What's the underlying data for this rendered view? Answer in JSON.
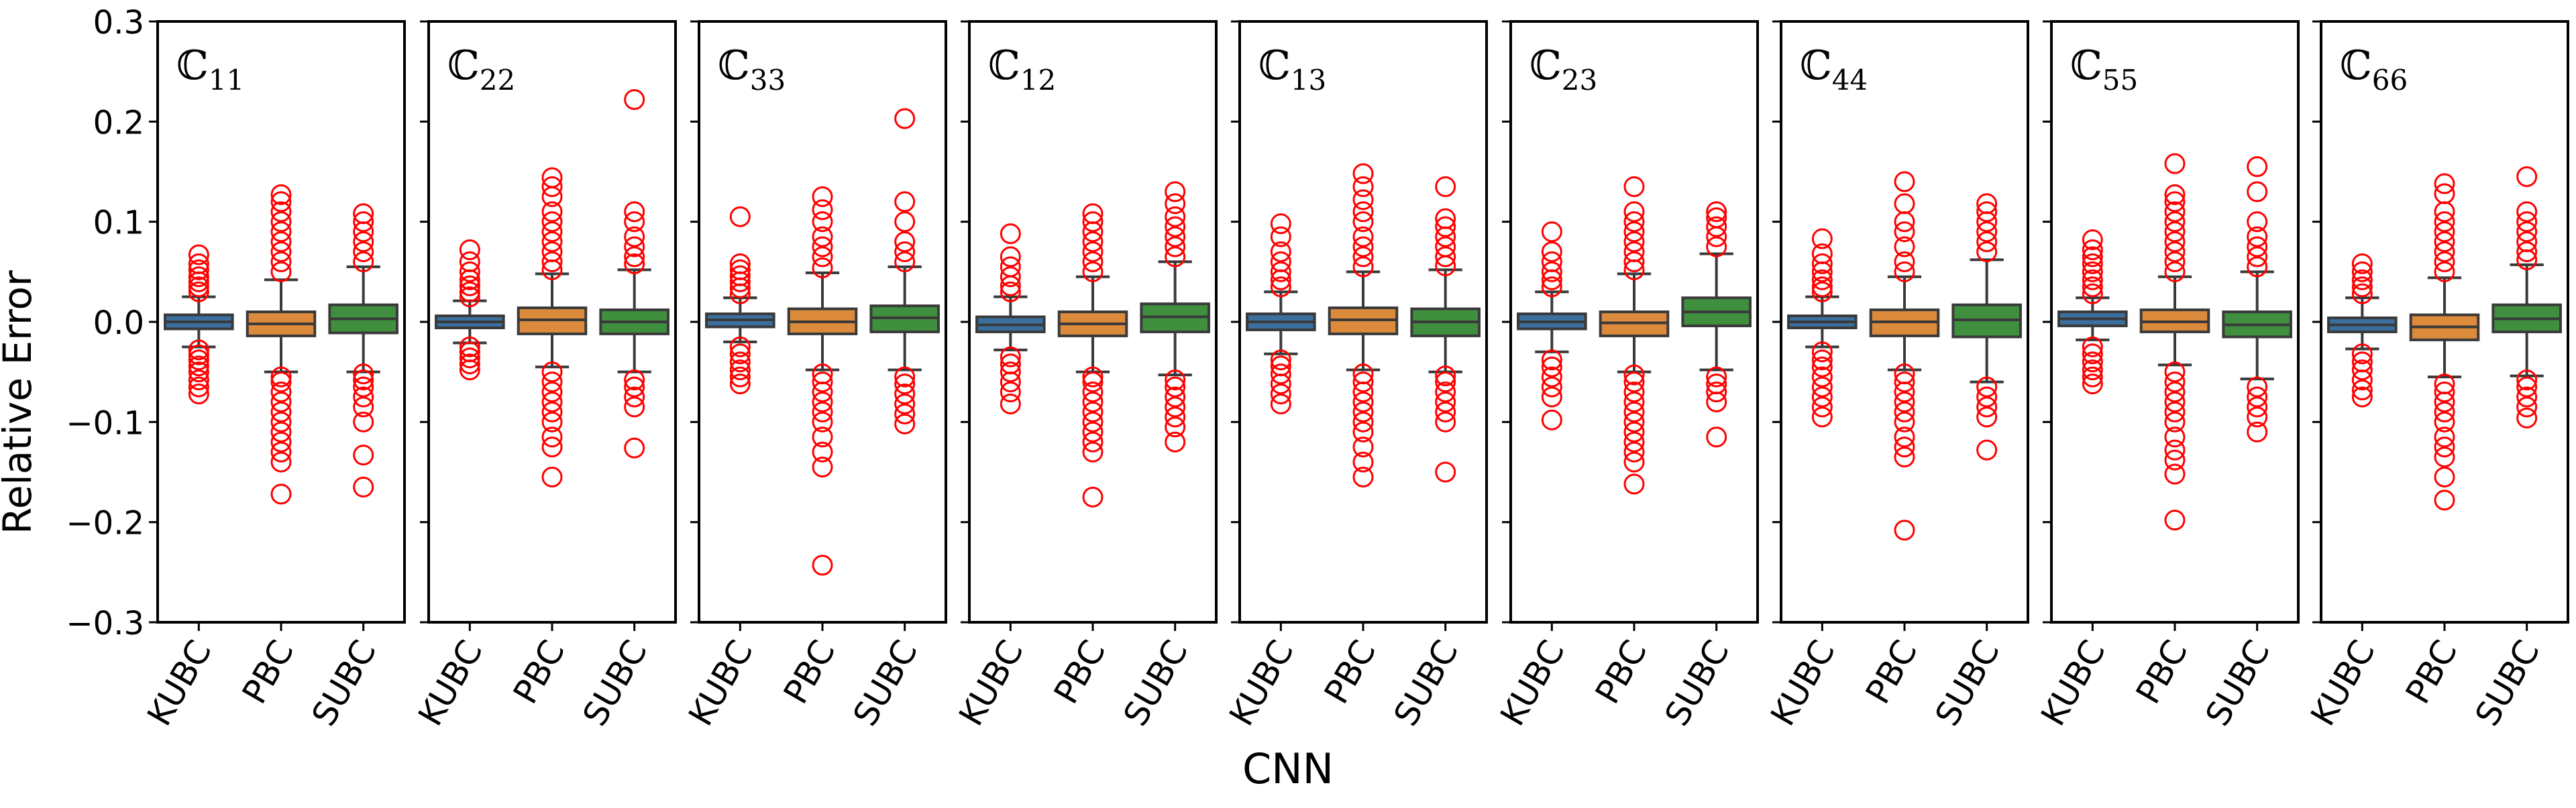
{
  "chart_data": {
    "type": "box",
    "xlabel": "CNN",
    "ylabel": "Relative Error",
    "ylim": [
      -0.3,
      0.3
    ],
    "yticks": [
      -0.3,
      -0.2,
      -0.1,
      0.0,
      0.1,
      0.2,
      0.3
    ],
    "ytick_labels": [
      "−0.3",
      "−0.2",
      "−0.1",
      "0.0",
      "0.1",
      "0.2",
      "0.3"
    ],
    "categories": [
      "KUBC",
      "PBC",
      "SUBC"
    ],
    "colors": {
      "KUBC": "#3a6f9e",
      "PBC": "#dc8a3c",
      "SUBC": "#3f8f3f",
      "outlier": "#ff0000",
      "axis": "#000000"
    },
    "panels": [
      {
        "title": "ℂ",
        "subscript": "11",
        "boxes": [
          {
            "category": "KUBC",
            "q1": -0.007,
            "median": 0.0,
            "q3": 0.007,
            "whisker_low": -0.025,
            "whisker_high": 0.025,
            "outliers": [
              -0.072,
              -0.065,
              -0.058,
              -0.05,
              -0.044,
              -0.038,
              -0.033,
              -0.028,
              0.03,
              0.035,
              0.04,
              0.045,
              0.052,
              0.058,
              0.067
            ]
          },
          {
            "category": "PBC",
            "q1": -0.014,
            "median": -0.002,
            "q3": 0.01,
            "whisker_low": -0.05,
            "whisker_high": 0.042,
            "outliers": [
              -0.172,
              -0.14,
              -0.13,
              -0.12,
              -0.11,
              -0.1,
              -0.09,
              -0.08,
              -0.07,
              -0.06,
              -0.055,
              0.05,
              0.06,
              0.07,
              0.08,
              0.09,
              0.1,
              0.11,
              0.12,
              0.127
            ]
          },
          {
            "category": "SUBC",
            "q1": -0.011,
            "median": 0.003,
            "q3": 0.017,
            "whisker_low": -0.05,
            "whisker_high": 0.055,
            "outliers": [
              -0.165,
              -0.133,
              -0.1,
              -0.085,
              -0.075,
              -0.065,
              -0.058,
              -0.052,
              0.06,
              0.07,
              0.08,
              0.09,
              0.1,
              0.108
            ]
          }
        ]
      },
      {
        "title": "ℂ",
        "subscript": "22",
        "boxes": [
          {
            "category": "KUBC",
            "q1": -0.006,
            "median": 0.0,
            "q3": 0.006,
            "whisker_low": -0.021,
            "whisker_high": 0.021,
            "outliers": [
              -0.048,
              -0.042,
              -0.036,
              -0.03,
              -0.025,
              0.025,
              0.03,
              0.036,
              0.042,
              0.05,
              0.06,
              0.072
            ]
          },
          {
            "category": "PBC",
            "q1": -0.012,
            "median": 0.002,
            "q3": 0.014,
            "whisker_low": -0.045,
            "whisker_high": 0.048,
            "outliers": [
              -0.155,
              -0.125,
              -0.115,
              -0.1,
              -0.09,
              -0.08,
              -0.07,
              -0.06,
              -0.05,
              0.052,
              0.06,
              0.07,
              0.08,
              0.09,
              0.1,
              0.11,
              0.125,
              0.135,
              0.144
            ]
          },
          {
            "category": "SUBC",
            "q1": -0.012,
            "median": 0.0,
            "q3": 0.012,
            "whisker_low": -0.05,
            "whisker_high": 0.052,
            "outliers": [
              -0.126,
              -0.085,
              -0.075,
              -0.065,
              -0.058,
              0.058,
              0.065,
              0.075,
              0.085,
              0.1,
              0.11,
              0.222
            ]
          }
        ]
      },
      {
        "title": "ℂ",
        "subscript": "33",
        "boxes": [
          {
            "category": "KUBC",
            "q1": -0.005,
            "median": 0.002,
            "q3": 0.008,
            "whisker_low": -0.02,
            "whisker_high": 0.024,
            "outliers": [
              -0.062,
              -0.055,
              -0.048,
              -0.04,
              -0.032,
              -0.025,
              0.028,
              0.034,
              0.04,
              0.046,
              0.052,
              0.058,
              0.105
            ]
          },
          {
            "category": "PBC",
            "q1": -0.012,
            "median": 0.0,
            "q3": 0.013,
            "whisker_low": -0.048,
            "whisker_high": 0.049,
            "outliers": [
              -0.243,
              -0.145,
              -0.13,
              -0.115,
              -0.1,
              -0.09,
              -0.08,
              -0.07,
              -0.06,
              -0.052,
              0.054,
              0.065,
              0.075,
              0.085,
              0.1,
              0.112,
              0.125
            ]
          },
          {
            "category": "SUBC",
            "q1": -0.01,
            "median": 0.004,
            "q3": 0.016,
            "whisker_low": -0.048,
            "whisker_high": 0.055,
            "outliers": [
              -0.102,
              -0.092,
              -0.082,
              -0.072,
              -0.062,
              -0.055,
              0.06,
              0.07,
              0.08,
              0.1,
              0.12,
              0.203
            ]
          }
        ]
      },
      {
        "title": "ℂ",
        "subscript": "12",
        "boxes": [
          {
            "category": "KUBC",
            "q1": -0.01,
            "median": -0.003,
            "q3": 0.005,
            "whisker_low": -0.028,
            "whisker_high": 0.025,
            "outliers": [
              -0.082,
              -0.07,
              -0.06,
              -0.05,
              -0.042,
              -0.035,
              0.03,
              0.036,
              0.045,
              0.055,
              0.065,
              0.088
            ]
          },
          {
            "category": "PBC",
            "q1": -0.014,
            "median": -0.002,
            "q3": 0.01,
            "whisker_low": -0.05,
            "whisker_high": 0.045,
            "outliers": [
              -0.175,
              -0.13,
              -0.12,
              -0.11,
              -0.1,
              -0.09,
              -0.08,
              -0.07,
              -0.06,
              -0.055,
              0.05,
              0.06,
              0.07,
              0.08,
              0.09,
              0.1,
              0.108
            ]
          },
          {
            "category": "SUBC",
            "q1": -0.01,
            "median": 0.005,
            "q3": 0.018,
            "whisker_low": -0.053,
            "whisker_high": 0.06,
            "outliers": [
              -0.12,
              -0.105,
              -0.095,
              -0.085,
              -0.075,
              -0.065,
              -0.058,
              0.065,
              0.075,
              0.085,
              0.095,
              0.105,
              0.118,
              0.13
            ]
          }
        ]
      },
      {
        "title": "ℂ",
        "subscript": "13",
        "boxes": [
          {
            "category": "KUBC",
            "q1": -0.008,
            "median": 0.0,
            "q3": 0.008,
            "whisker_low": -0.032,
            "whisker_high": 0.03,
            "outliers": [
              -0.082,
              -0.072,
              -0.062,
              -0.052,
              -0.044,
              -0.038,
              0.035,
              0.042,
              0.05,
              0.06,
              0.07,
              0.085,
              0.098
            ]
          },
          {
            "category": "PBC",
            "q1": -0.012,
            "median": 0.002,
            "q3": 0.014,
            "whisker_low": -0.048,
            "whisker_high": 0.05,
            "outliers": [
              -0.155,
              -0.14,
              -0.125,
              -0.11,
              -0.1,
              -0.09,
              -0.08,
              -0.07,
              -0.06,
              -0.052,
              0.055,
              0.065,
              0.075,
              0.085,
              0.1,
              0.11,
              0.122,
              0.135,
              0.148
            ]
          },
          {
            "category": "SUBC",
            "q1": -0.014,
            "median": 0.0,
            "q3": 0.013,
            "whisker_low": -0.05,
            "whisker_high": 0.052,
            "outliers": [
              -0.15,
              -0.1,
              -0.09,
              -0.08,
              -0.07,
              -0.06,
              -0.054,
              0.056,
              0.065,
              0.075,
              0.085,
              0.095,
              0.103,
              0.135
            ]
          }
        ]
      },
      {
        "title": "ℂ",
        "subscript": "23",
        "boxes": [
          {
            "category": "KUBC",
            "q1": -0.007,
            "median": 0.0,
            "q3": 0.008,
            "whisker_low": -0.03,
            "whisker_high": 0.03,
            "outliers": [
              -0.098,
              -0.075,
              -0.065,
              -0.055,
              -0.045,
              -0.038,
              0.035,
              0.042,
              0.05,
              0.06,
              0.07,
              0.09
            ]
          },
          {
            "category": "PBC",
            "q1": -0.014,
            "median": -0.001,
            "q3": 0.01,
            "whisker_low": -0.05,
            "whisker_high": 0.048,
            "outliers": [
              -0.162,
              -0.14,
              -0.13,
              -0.12,
              -0.11,
              -0.1,
              -0.09,
              -0.08,
              -0.07,
              -0.06,
              -0.053,
              0.052,
              0.06,
              0.07,
              0.08,
              0.09,
              0.1,
              0.11,
              0.135
            ]
          },
          {
            "category": "SUBC",
            "q1": -0.004,
            "median": 0.01,
            "q3": 0.024,
            "whisker_low": -0.048,
            "whisker_high": 0.068,
            "outliers": [
              -0.115,
              -0.08,
              -0.07,
              -0.062,
              -0.055,
              0.075,
              0.085,
              0.095,
              0.104,
              0.11
            ]
          }
        ]
      },
      {
        "title": "ℂ",
        "subscript": "44",
        "boxes": [
          {
            "category": "KUBC",
            "q1": -0.006,
            "median": 0.0,
            "q3": 0.006,
            "whisker_low": -0.025,
            "whisker_high": 0.025,
            "outliers": [
              -0.095,
              -0.085,
              -0.075,
              -0.065,
              -0.055,
              -0.045,
              -0.038,
              -0.03,
              0.03,
              0.035,
              0.042,
              0.05,
              0.058,
              0.068,
              0.083
            ]
          },
          {
            "category": "PBC",
            "q1": -0.014,
            "median": 0.0,
            "q3": 0.012,
            "whisker_low": -0.048,
            "whisker_high": 0.045,
            "outliers": [
              -0.208,
              -0.135,
              -0.125,
              -0.115,
              -0.1,
              -0.09,
              -0.08,
              -0.07,
              -0.06,
              -0.052,
              0.05,
              0.06,
              0.075,
              0.09,
              0.1,
              0.118,
              0.14
            ]
          },
          {
            "category": "SUBC",
            "q1": -0.015,
            "median": 0.002,
            "q3": 0.017,
            "whisker_low": -0.06,
            "whisker_high": 0.062,
            "outliers": [
              -0.128,
              -0.095,
              -0.085,
              -0.075,
              -0.065,
              0.07,
              0.08,
              0.09,
              0.1,
              0.11,
              0.118
            ]
          }
        ]
      },
      {
        "title": "ℂ",
        "subscript": "55",
        "boxes": [
          {
            "category": "KUBC",
            "q1": -0.004,
            "median": 0.003,
            "q3": 0.01,
            "whisker_low": -0.018,
            "whisker_high": 0.024,
            "outliers": [
              -0.062,
              -0.055,
              -0.048,
              -0.04,
              -0.032,
              -0.025,
              0.028,
              0.035,
              0.042,
              0.05,
              0.058,
              0.065,
              0.072,
              0.082
            ]
          },
          {
            "category": "PBC",
            "q1": -0.01,
            "median": 0.0,
            "q3": 0.012,
            "whisker_low": -0.043,
            "whisker_high": 0.045,
            "outliers": [
              -0.198,
              -0.152,
              -0.138,
              -0.128,
              -0.115,
              -0.1,
              -0.09,
              -0.08,
              -0.07,
              -0.06,
              -0.05,
              0.05,
              0.06,
              0.07,
              0.08,
              0.09,
              0.1,
              0.11,
              0.12,
              0.127,
              0.158
            ]
          },
          {
            "category": "SUBC",
            "q1": -0.015,
            "median": -0.003,
            "q3": 0.01,
            "whisker_low": -0.057,
            "whisker_high": 0.05,
            "outliers": [
              -0.11,
              -0.095,
              -0.085,
              -0.075,
              -0.065,
              0.055,
              0.065,
              0.075,
              0.085,
              0.1,
              0.13,
              0.155
            ]
          }
        ]
      },
      {
        "title": "ℂ",
        "subscript": "66",
        "boxes": [
          {
            "category": "KUBC",
            "q1": -0.01,
            "median": -0.003,
            "q3": 0.004,
            "whisker_low": -0.027,
            "whisker_high": 0.024,
            "outliers": [
              -0.075,
              -0.068,
              -0.058,
              -0.048,
              -0.04,
              -0.032,
              0.028,
              0.035,
              0.042,
              0.05,
              0.058
            ]
          },
          {
            "category": "PBC",
            "q1": -0.018,
            "median": -0.005,
            "q3": 0.007,
            "whisker_low": -0.055,
            "whisker_high": 0.044,
            "outliers": [
              -0.178,
              -0.155,
              -0.135,
              -0.125,
              -0.115,
              -0.1,
              -0.09,
              -0.08,
              -0.07,
              -0.062,
              0.05,
              0.06,
              0.07,
              0.08,
              0.09,
              0.1,
              0.11,
              0.128,
              0.138
            ]
          },
          {
            "category": "SUBC",
            "q1": -0.01,
            "median": 0.003,
            "q3": 0.017,
            "whisker_low": -0.054,
            "whisker_high": 0.057,
            "outliers": [
              -0.096,
              -0.085,
              -0.075,
              -0.065,
              -0.058,
              0.062,
              0.07,
              0.08,
              0.09,
              0.1,
              0.11,
              0.145
            ]
          }
        ]
      }
    ]
  }
}
